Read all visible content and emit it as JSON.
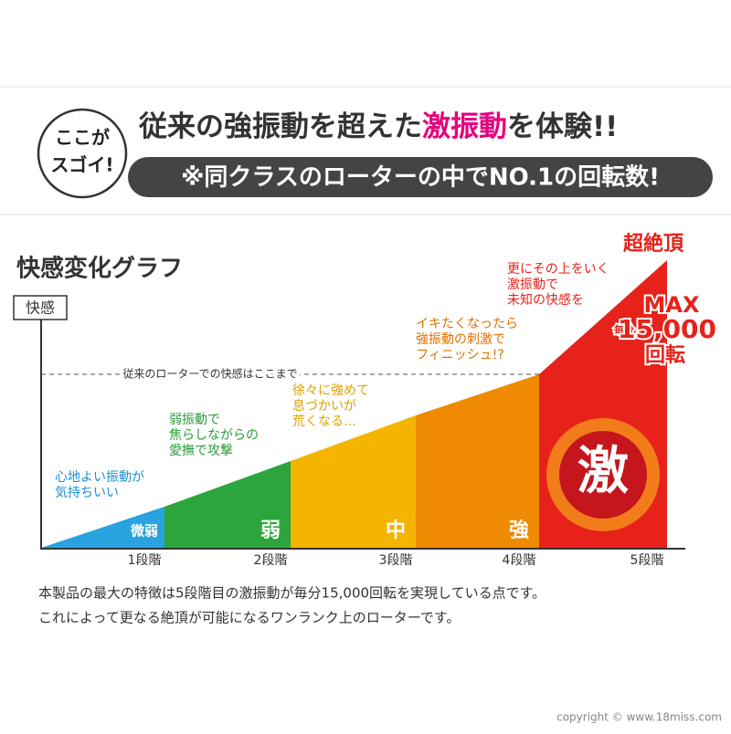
{
  "badge": [
    "ここが",
    "スゴイ!"
  ],
  "headline": {
    "before": "従来の強振動を超えた",
    "highlight": "激振動",
    "after": "を体験!!"
  },
  "banner": "※同クラスのローターの中でNO.1の回転数!",
  "graph": {
    "title": "快感変化グラフ",
    "y_label": "快感",
    "reference_label": "従来のローターでの快感はここまで",
    "stages": [
      {
        "label": "微弱",
        "x_label": "1段階",
        "note": [
          "心地よい振動が",
          "気持ちいい"
        ]
      },
      {
        "label": "弱",
        "x_label": "2段階",
        "note": [
          "弱振動で",
          "焦らしながらの",
          "愛撫で攻撃"
        ]
      },
      {
        "label": "中",
        "x_label": "3段階",
        "note": [
          "徐々に強めて",
          "息づかいが",
          "荒くなる…"
        ]
      },
      {
        "label": "強",
        "x_label": "4段階",
        "note": [
          "イキたくなったら",
          "強振動の刺激で",
          "フィニッシュ!?"
        ]
      },
      {
        "label": "激",
        "x_label": "5段階",
        "note": [
          "更にその上をいく",
          "激振動で",
          "未知の快感を"
        ]
      }
    ],
    "peak": {
      "title": "超絶頂",
      "max": "MAX",
      "per_minute": "毎分",
      "rpm": "15,000",
      "unit": "回転"
    }
  },
  "description": [
    "本製品の最大の特徴は5段階目の激振動が毎分15,000回転を実現している点です。",
    "これによって更なる絶頂が可能になるワンランク上のローターです。"
  ],
  "copyright": "copyright © www.18miss.com"
}
